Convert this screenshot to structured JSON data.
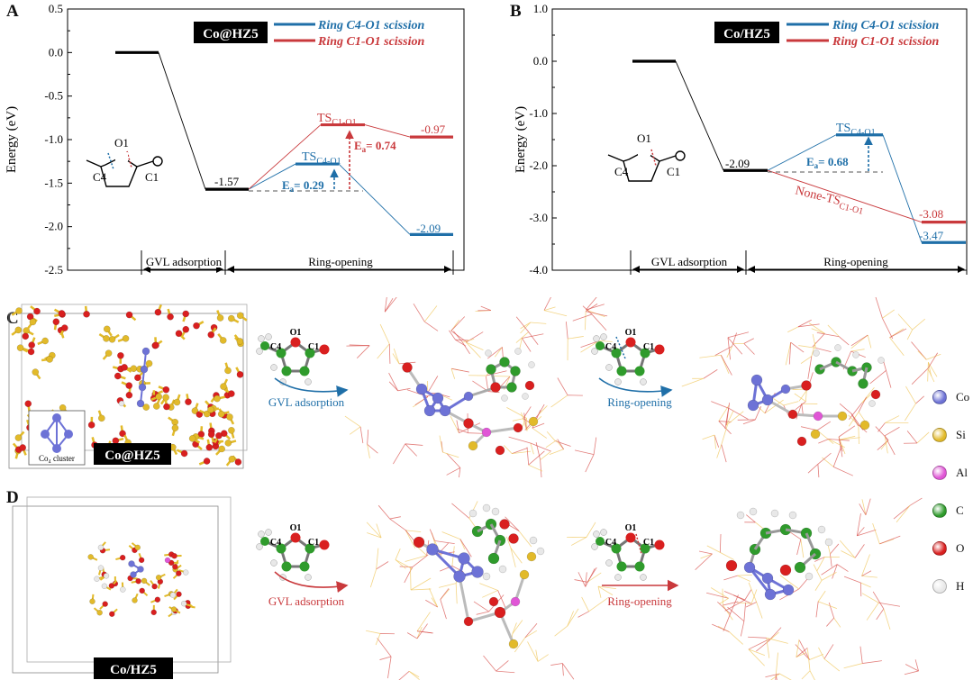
{
  "colors": {
    "blue": "#1f6fa8",
    "red": "#c9393c",
    "black": "#000000",
    "co": "#6d72d6",
    "si": "#e2ba2a",
    "al": "#e056d6",
    "c": "#2f9b2c",
    "o": "#d91f1f",
    "h": "#e8e8e8"
  },
  "panelA": {
    "letter": "A",
    "ylabel": "Energy (eV)",
    "yticks": [
      "0.5",
      "0.0",
      "-0.5",
      "-1.0",
      "-1.5",
      "-2.0",
      "-2.5"
    ],
    "ylim": [
      -2.5,
      0.5
    ],
    "badge": "Co@HZ5",
    "legend": [
      {
        "label": "Ring C4-O1 scission",
        "color": "#1f6fa8"
      },
      {
        "label": "Ring C1-O1 scission",
        "color": "#c9393c"
      }
    ],
    "levels": {
      "start": 0.0,
      "adsorbed": -1.57,
      "ts_c4": -1.28,
      "ts_c1": -0.83,
      "final_c4": -2.09,
      "final_c1": -0.97
    },
    "labels": {
      "adsorbed": "-1.57",
      "final_c4": "-2.09",
      "final_c1": "-0.97",
      "ts_c4": "TS",
      "ts_c4_sub": "C4-O1",
      "ts_c1": "TS",
      "ts_c1_sub": "C1-O1",
      "ea_blue": "E",
      "ea_blue_sub": "a",
      "ea_blue_val": "= 0.29",
      "ea_red": "E",
      "ea_red_sub": "a",
      "ea_red_val": "= 0.74"
    },
    "stages": [
      "GVL adsorption",
      "Ring-opening"
    ],
    "molecule": {
      "o": "O1",
      "c4": "C4",
      "c1": "C1"
    }
  },
  "panelB": {
    "letter": "B",
    "ylabel": "Energy (eV)",
    "yticks": [
      "1.0",
      "0.0",
      "-1.0",
      "-2.0",
      "-3.0",
      "-4.0"
    ],
    "ylim": [
      -4.0,
      1.0
    ],
    "badge": "Co/HZ5",
    "legend": [
      {
        "label": "Ring C4-O1 scission",
        "color": "#1f6fa8"
      },
      {
        "label": "Ring C1-O1 scission",
        "color": "#c9393c"
      }
    ],
    "levels": {
      "start": 0.0,
      "adsorbed": -2.09,
      "ts_c4": -1.41,
      "final_c4": -3.47,
      "final_c1": -3.08
    },
    "labels": {
      "adsorbed": "-2.09",
      "final_c4": "-3.47",
      "final_c1": "-3.08",
      "ts_c4": "TS",
      "ts_c4_sub": "C4-O1",
      "none_ts": "None-TS",
      "none_ts_sub": "C1-O1",
      "ea_blue": "E",
      "ea_blue_sub": "a",
      "ea_blue_val": "= 0.68"
    },
    "stages": [
      "GVL adsorption",
      "Ring-opening"
    ],
    "molecule": {
      "o": "O1",
      "c4": "C4",
      "c1": "C1"
    }
  },
  "panelC": {
    "letter": "C",
    "badge": "Co@HZ5",
    "cluster_label": "Co₄ cluster",
    "arrow1": "GVL adsorption",
    "arrow2": "Ring-opening",
    "molecule": {
      "o": "O1",
      "c4": "C4",
      "c1": "C1"
    }
  },
  "panelD": {
    "letter": "D",
    "badge": "Co/HZ5",
    "arrow1": "GVL adsorption",
    "arrow2": "Ring-opening",
    "molecule": {
      "o": "O1",
      "c4": "C4",
      "c1": "C1"
    }
  },
  "atom_legend": [
    {
      "symbol": "Co",
      "color": "#6d72d6"
    },
    {
      "symbol": "Si",
      "color": "#e2ba2a"
    },
    {
      "symbol": "Al",
      "color": "#e056d6"
    },
    {
      "symbol": "C",
      "color": "#2f9b2c"
    },
    {
      "symbol": "O",
      "color": "#d91f1f"
    },
    {
      "symbol": "H",
      "color": "#e8e8e8"
    }
  ]
}
